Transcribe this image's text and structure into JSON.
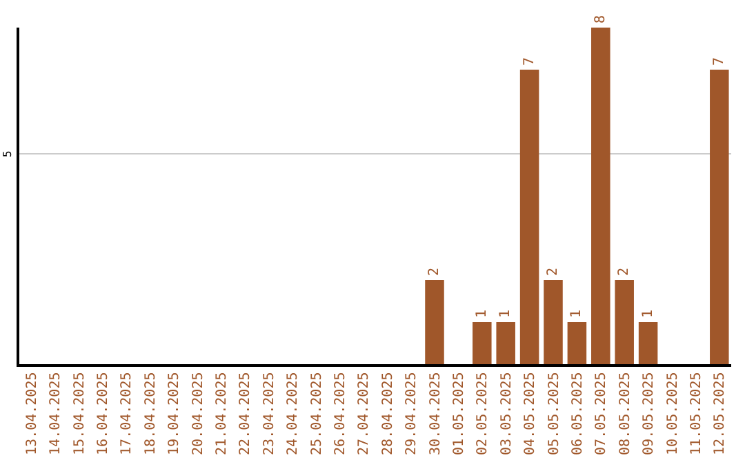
{
  "chart_data": {
    "type": "bar",
    "categories": [
      "13.04.2025",
      "14.04.2025",
      "15.04.2025",
      "16.04.2025",
      "17.04.2025",
      "18.04.2025",
      "19.04.2025",
      "20.04.2025",
      "21.04.2025",
      "22.04.2025",
      "23.04.2025",
      "24.04.2025",
      "25.04.2025",
      "26.04.2025",
      "27.04.2025",
      "28.04.2025",
      "29.04.2025",
      "30.04.2025",
      "01.05.2025",
      "02.05.2025",
      "03.05.2025",
      "04.05.2025",
      "05.05.2025",
      "06.05.2025",
      "07.05.2025",
      "08.05.2025",
      "09.05.2025",
      "10.05.2025",
      "11.05.2025",
      "12.05.2025"
    ],
    "values": [
      null,
      null,
      null,
      null,
      null,
      null,
      null,
      null,
      null,
      null,
      null,
      null,
      null,
      null,
      null,
      null,
      null,
      2,
      null,
      1,
      1,
      7,
      2,
      1,
      8,
      2,
      1,
      null,
      null,
      7
    ],
    "value_labels": [
      null,
      null,
      null,
      null,
      null,
      null,
      null,
      null,
      null,
      null,
      null,
      null,
      null,
      null,
      null,
      null,
      null,
      "2",
      null,
      "1",
      "1",
      "7",
      "2",
      "1",
      "8",
      "2",
      "1",
      null,
      null,
      "7"
    ],
    "color": "#a0572a",
    "ylim": [
      0,
      8
    ],
    "ref_lines": [
      {
        "axis": "y",
        "value": 5,
        "label": "5",
        "color": "#cccccc"
      }
    ],
    "legend": false
  }
}
